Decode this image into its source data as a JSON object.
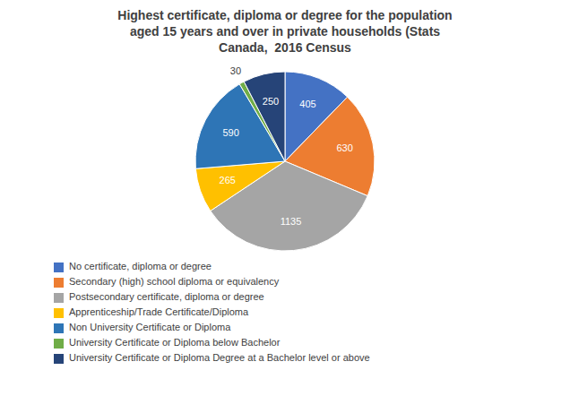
{
  "chart_data": {
    "type": "pie",
    "title": "Highest certificate, diploma or degree for the population\naged 15 years and over in private households (Stats\nCanada,  2016 Census",
    "categories": [
      "No certificate, diploma or degree",
      "Secondary (high) school diploma or equivalency",
      "Postsecondary certificate, diploma or degree",
      "Apprenticeship/Trade Certificate/Diploma",
      "Non University Certificate or Diploma",
      "University Certificate or Diploma below Bachelor",
      "University Certificate or Diploma Degree at a Bachelor level or above"
    ],
    "values": [
      405,
      630,
      1135,
      265,
      590,
      30,
      250
    ],
    "colors": [
      "#4472C4",
      "#ED7D31",
      "#A5A5A5",
      "#FFC000",
      "#2E75B6",
      "#70AD47",
      "#264478"
    ],
    "data_labels": true,
    "legend": "bottom"
  }
}
